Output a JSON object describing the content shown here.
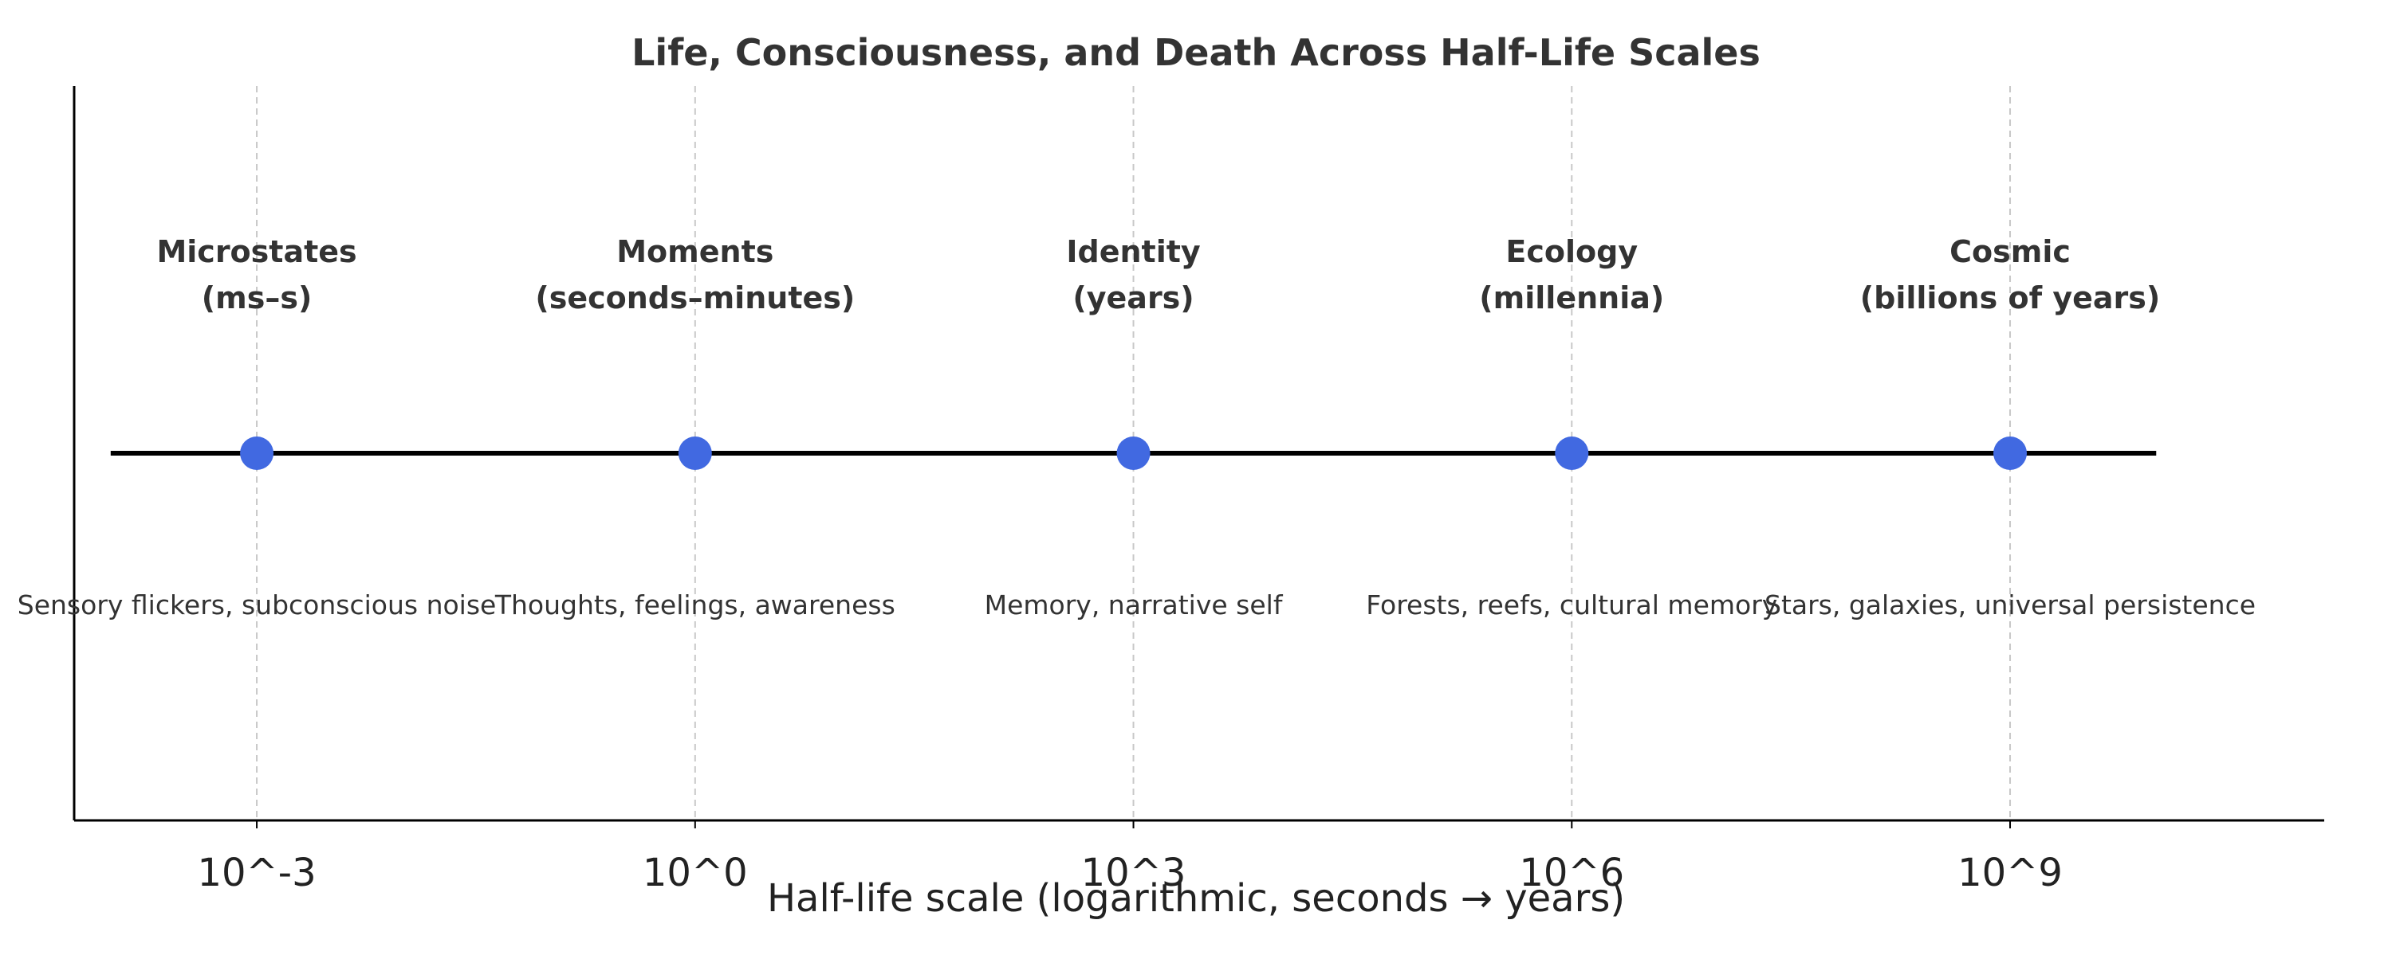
{
  "chart_data": {
    "type": "scatter",
    "title": "Life, Consciousness, and Death Across Half-Life Scales",
    "xlabel": "Half-life scale (logarithmic, seconds → years)",
    "ylabel": "",
    "x_scale": "log",
    "xlim": [
      -4.25,
      11.15
    ],
    "ylim": [
      -1.5,
      1.5
    ],
    "xticks": [
      {
        "value": -3,
        "label": "10^-3"
      },
      {
        "value": 0,
        "label": "10^0"
      },
      {
        "value": 3,
        "label": "10^3"
      },
      {
        "value": 6,
        "label": "10^6"
      },
      {
        "value": 9,
        "label": "10^9"
      }
    ],
    "timeline_range": [
      -4,
      10
    ],
    "grid": "vertical dashed at ticks",
    "legend": "none",
    "marker_color": "#4169E1",
    "points": [
      {
        "x": -3,
        "title_lines": [
          "Microstates",
          "(ms–s)"
        ],
        "description": "Sensory flickers, subconscious noise"
      },
      {
        "x": 0,
        "title_lines": [
          "Moments",
          "(seconds–minutes)"
        ],
        "description": "Thoughts, feelings, awareness"
      },
      {
        "x": 3,
        "title_lines": [
          "Identity",
          "(years)"
        ],
        "description": "Memory, narrative self"
      },
      {
        "x": 6,
        "title_lines": [
          "Ecology",
          "(millennia)"
        ],
        "description": "Forests, reefs, cultural memory"
      },
      {
        "x": 9,
        "title_lines": [
          "Cosmic",
          "(billions of years)"
        ],
        "description": "Stars, galaxies, universal persistence"
      }
    ]
  }
}
